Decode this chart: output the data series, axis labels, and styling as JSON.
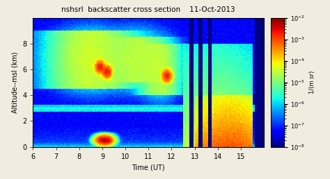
{
  "title": "nshsrl  backscatter cross section    11-Oct-2013",
  "xlabel": "Time (UT)",
  "ylabel": "Altitude--msl (km)",
  "colorbar_label": "1/(m sr)",
  "xlim": [
    6,
    16
  ],
  "ylim": [
    0,
    10
  ],
  "xticks": [
    6,
    7,
    8,
    9,
    10,
    11,
    12,
    13,
    14,
    15
  ],
  "yticks": [
    0,
    2,
    4,
    6,
    8
  ],
  "vmin": 1e-08,
  "vmax": 0.01,
  "colorbar_ticks": [
    1e-08,
    1e-07,
    1e-06,
    1e-05,
    0.0001,
    0.001,
    0.01
  ],
  "colorbar_ticklabels": [
    "10⁻⁸",
    "10⁻⁷",
    "10⁻⁶",
    "10⁻⁵",
    "10⁻⁴",
    "10⁻³",
    "10⁻²"
  ],
  "background_color": "#f0ece0",
  "fig_facecolor": "#f0ece0"
}
